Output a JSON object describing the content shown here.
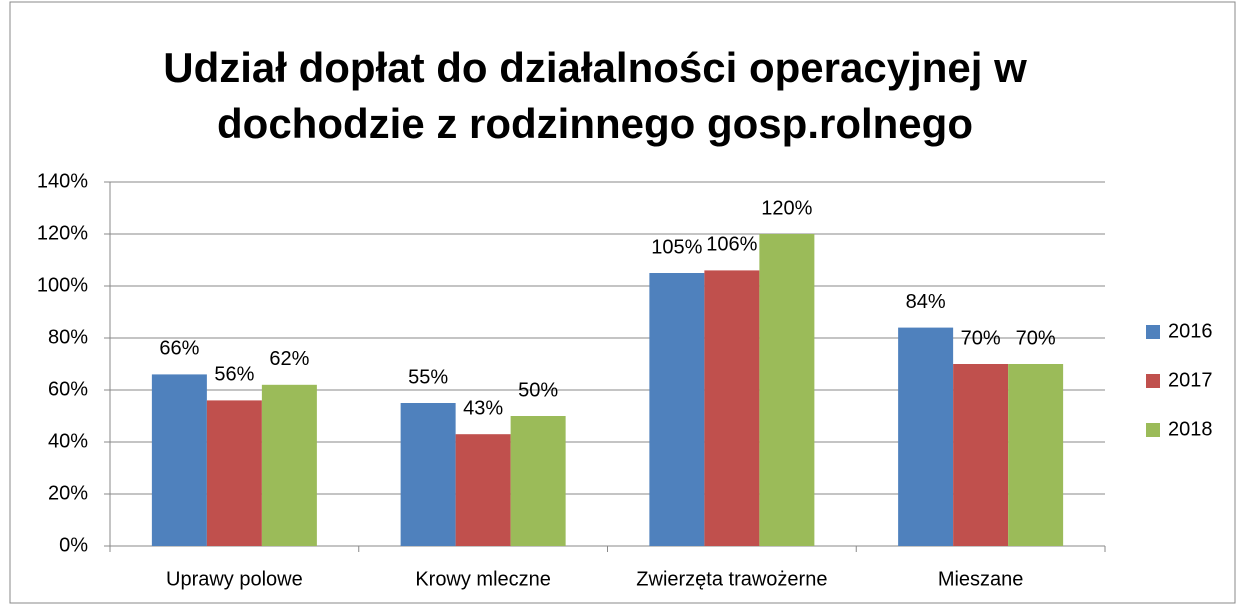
{
  "chart_data": {
    "type": "bar",
    "title": "Udział dopłat do działalności operacyjnej w dochodzie z rodzinnego gosp.rolnego",
    "categories": [
      "Uprawy polowe",
      "Krowy mleczne",
      "Zwierzęta trawożerne",
      "Mieszane"
    ],
    "series": [
      {
        "name": "2016",
        "color": "#4f81bd",
        "values": [
          66,
          55,
          105,
          84
        ],
        "value_labels": [
          "66%",
          "55%",
          "105%",
          "84%"
        ]
      },
      {
        "name": "2017",
        "color": "#c0504d",
        "values": [
          56,
          43,
          106,
          70
        ],
        "value_labels": [
          "56%",
          "43%",
          "106%",
          "70%"
        ]
      },
      {
        "name": "2018",
        "color": "#9bbb59",
        "values": [
          62,
          50,
          120,
          70
        ],
        "value_labels": [
          "62%",
          "50%",
          "120%",
          "70%"
        ]
      }
    ],
    "ylim": [
      0,
      140
    ],
    "yticks": [
      {
        "value": 0,
        "label": "0%"
      },
      {
        "value": 20,
        "label": "20%"
      },
      {
        "value": 40,
        "label": "40%"
      },
      {
        "value": 60,
        "label": "60%"
      },
      {
        "value": 80,
        "label": "80%"
      },
      {
        "value": 100,
        "label": "100%"
      },
      {
        "value": 120,
        "label": "120%"
      },
      {
        "value": 140,
        "label": "140%"
      }
    ],
    "grid": true,
    "legend": "right"
  }
}
